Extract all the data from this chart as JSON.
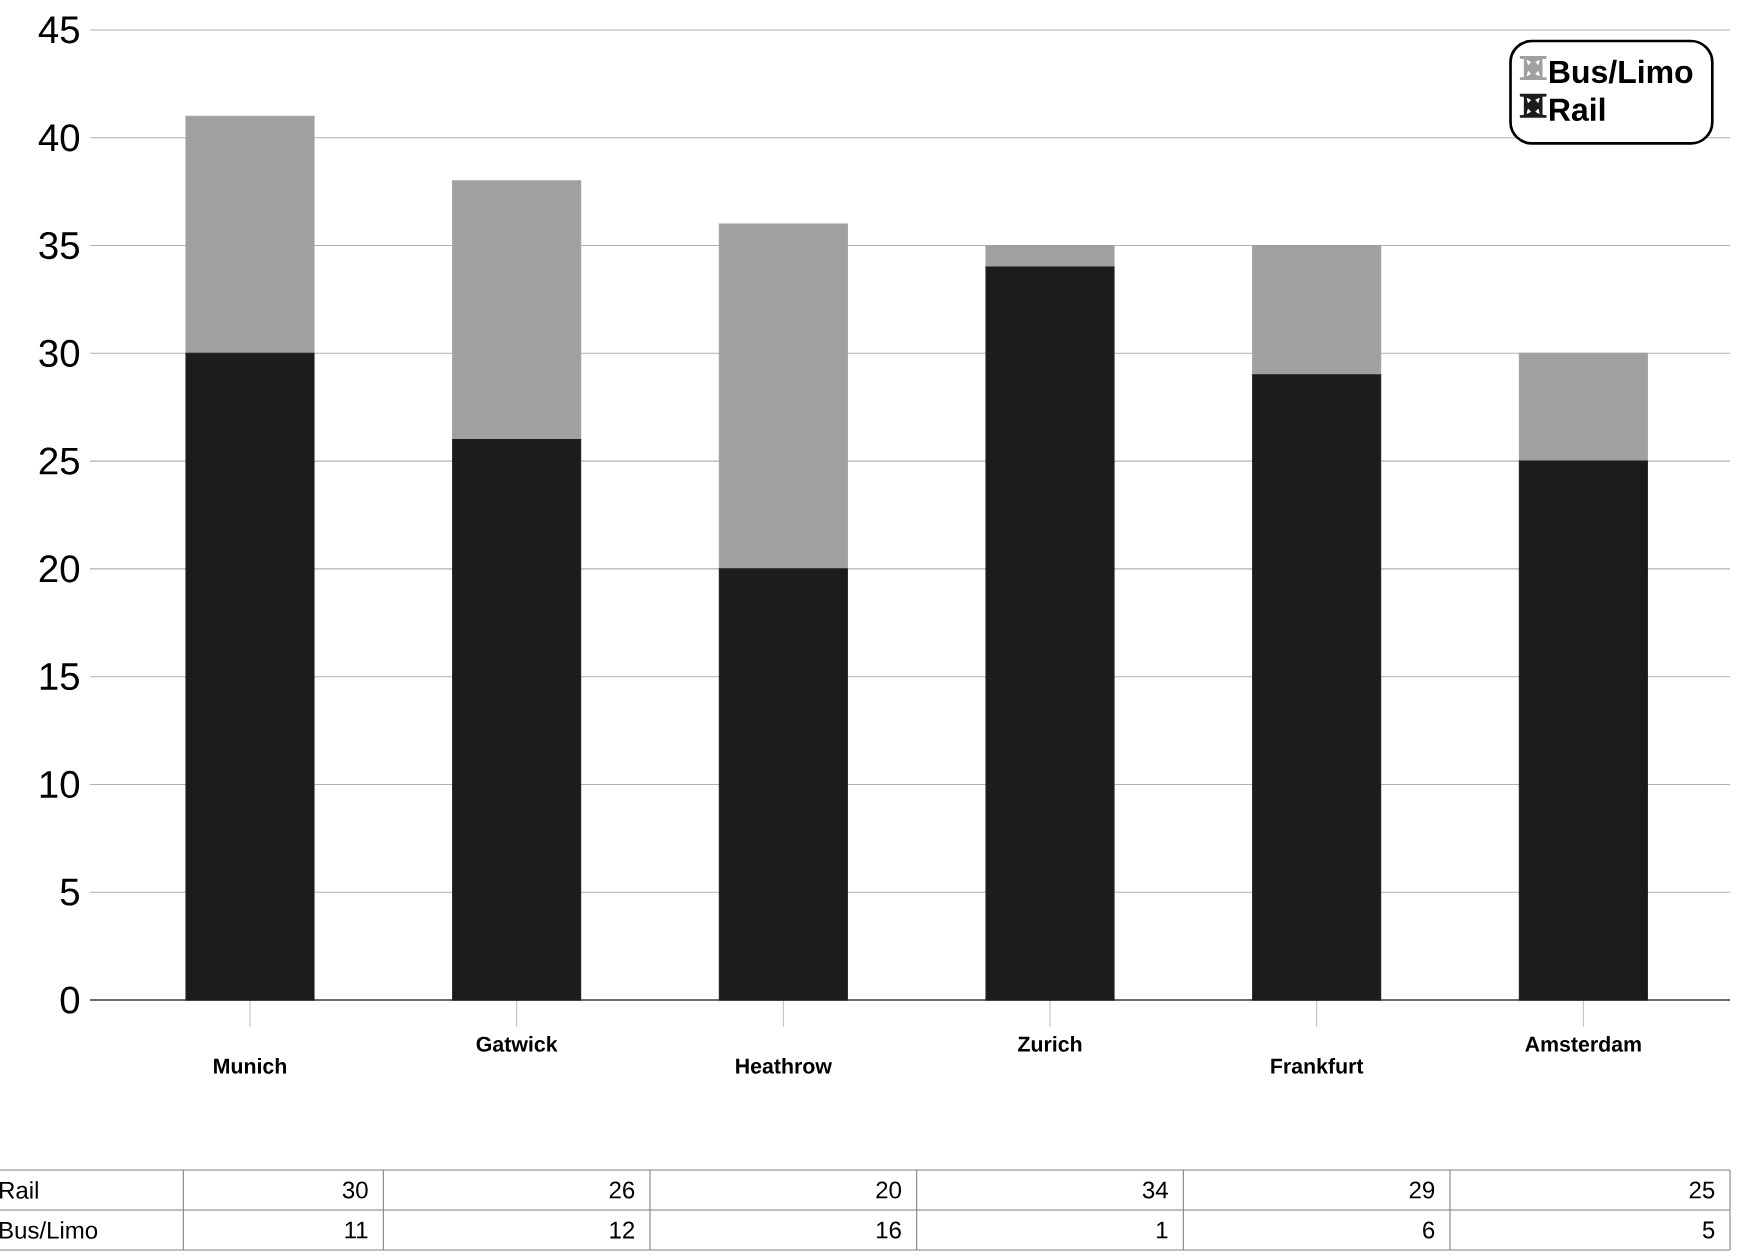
{
  "chart_data": {
    "type": "bar",
    "stacked": true,
    "categories": [
      "Munich",
      "Gatwick",
      "Heathrow",
      "Zurich",
      "Frankfurt",
      "Amsterdam"
    ],
    "series": [
      {
        "name": "Rail",
        "color": "#1c1c1c",
        "values": [
          30,
          26,
          20,
          34,
          29,
          25
        ]
      },
      {
        "name": "Bus/Limo",
        "color": "#a0a0a0",
        "values": [
          11,
          12,
          16,
          1,
          6,
          5
        ]
      }
    ],
    "ylim": [
      0,
      45
    ],
    "yticks": [
      0,
      5,
      10,
      15,
      20,
      25,
      30,
      35,
      40,
      45
    ],
    "grid": "y",
    "legend": "top right",
    "data_labels": true
  }
}
